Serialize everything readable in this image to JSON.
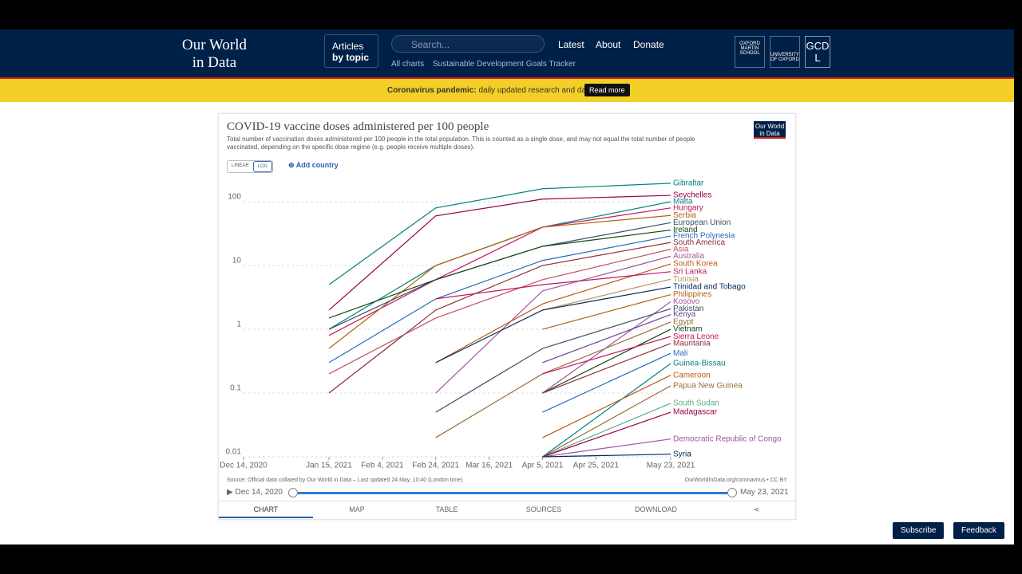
{
  "header": {
    "logo_line1": "Our World",
    "logo_line2": "in Data",
    "articles": "Articles",
    "by_topic": "by topic",
    "search": "Search...",
    "nav": [
      "Latest",
      "About",
      "Donate"
    ],
    "sub_nav": [
      "All charts",
      "Sustainable Development Goals Tracker"
    ],
    "partners": [
      "OXFORD MARTIN SCHOOL",
      "UNIVERSITY OF OXFORD",
      "GCDL"
    ]
  },
  "banner": {
    "bold": "Coronavirus pandemic:",
    "text": "daily updated research and data.",
    "button": "Read more"
  },
  "card": {
    "logo_line1": "Our World",
    "logo_line2": "in Data",
    "scale_options": [
      "LINEAR",
      "LOG"
    ],
    "add_country": "Add country",
    "source": "Source: Official data collated by Our World in Data – Last updated 24 May, 10:40 (London time)",
    "credit": "OurWorldInData.org/coronavirus • CC BY",
    "timeline_start": "Dec 14, 2020",
    "timeline_end": "May 23, 2021",
    "tabs": [
      "CHART",
      "MAP",
      "TABLE",
      "SOURCES",
      "DOWNLOAD"
    ]
  },
  "buttons": [
    "Subscribe",
    "Feedback"
  ],
  "chart_data": {
    "type": "line",
    "title": "COVID-19 vaccine doses administered per 100 people",
    "subtitle": "Total number of vaccination doses administered per 100 people in the total population. This is counted as a single dose, and may not equal the total number of people vaccinated, depending on the specific dose regime (e.g. people receive multiple doses).",
    "log_scale": true,
    "grid": true,
    "x": [
      "2020-12-14",
      "2021-01-15",
      "2021-02-24",
      "2021-04-05",
      "2021-05-23"
    ],
    "xlim": [
      "2020-12-14",
      "2021-05-23"
    ],
    "xticks": [
      {
        "value": "2020-12-14",
        "label": "Dec 14, 2020"
      },
      {
        "value": "2021-01-15",
        "label": "Jan 15, 2021"
      },
      {
        "value": "2021-02-04",
        "label": "Feb 4, 2021"
      },
      {
        "value": "2021-02-24",
        "label": "Feb 24, 2021"
      },
      {
        "value": "2021-03-16",
        "label": "Mar 16, 2021"
      },
      {
        "value": "2021-04-05",
        "label": "Apr 5, 2021"
      },
      {
        "value": "2021-04-25",
        "label": "Apr 25, 2021"
      },
      {
        "value": "2021-05-23",
        "label": "May 23, 2021"
      }
    ],
    "ylim": [
      0.01,
      200
    ],
    "yticks": [
      0.01,
      0.1,
      1,
      10,
      100
    ],
    "series": [
      {
        "name": "Gibraltar",
        "color": "#00847e",
        "values": [
          null,
          5,
          80,
          160,
          195
        ]
      },
      {
        "name": "Seychelles",
        "color": "#970046",
        "values": [
          null,
          2,
          60,
          110,
          126
        ]
      },
      {
        "name": "Malta",
        "color": "#00847e",
        "values": [
          null,
          1,
          10,
          40,
          100
        ]
      },
      {
        "name": "Hungary",
        "color": "#c2185b",
        "values": [
          null,
          0.8,
          6,
          40,
          80
        ]
      },
      {
        "name": "Serbia",
        "color": "#b16214",
        "values": [
          null,
          0.5,
          10,
          40,
          61
        ]
      },
      {
        "name": "European Union",
        "color": "#3c4e66",
        "values": [
          null,
          1,
          6,
          20,
          47
        ]
      },
      {
        "name": "Ireland",
        "color": "#18470f",
        "values": [
          null,
          1.5,
          6,
          20,
          36
        ]
      },
      {
        "name": "French Polynesia",
        "color": "#286bbb",
        "values": [
          null,
          0.3,
          3,
          12,
          29
        ]
      },
      {
        "name": "South America",
        "color": "#883039",
        "values": [
          null,
          0.1,
          2,
          10,
          23
        ]
      },
      {
        "name": "Asia",
        "color": "#c15065",
        "values": [
          null,
          0.2,
          1.5,
          6,
          18
        ]
      },
      {
        "name": "Australia",
        "color": "#a2559c",
        "values": [
          null,
          null,
          0.1,
          4,
          14
        ]
      },
      {
        "name": "South Korea",
        "color": "#be5915",
        "values": [
          null,
          null,
          0.3,
          2.5,
          10.6
        ]
      },
      {
        "name": "Sri Lanka",
        "color": "#c2185b",
        "values": [
          null,
          null,
          3,
          5,
          8
        ]
      },
      {
        "name": "Tunisia",
        "color": "#bc8e5a",
        "values": [
          null,
          null,
          null,
          2,
          6.1
        ]
      },
      {
        "name": "Trinidad and Tobago",
        "color": "#00295b",
        "values": [
          null,
          null,
          0.3,
          2,
          4.6
        ]
      },
      {
        "name": "Philippines",
        "color": "#b16214",
        "values": [
          null,
          null,
          null,
          1,
          3.5
        ]
      },
      {
        "name": "Kosovo",
        "color": "#a2559c",
        "values": [
          null,
          null,
          null,
          0.1,
          2.7
        ]
      },
      {
        "name": "Pakistan",
        "color": "#3c4e66",
        "values": [
          null,
          null,
          0.05,
          0.5,
          2.1
        ]
      },
      {
        "name": "Kenya",
        "color": "#6d3e91",
        "values": [
          null,
          null,
          null,
          0.3,
          1.7
        ]
      },
      {
        "name": "Egypt",
        "color": "#996d39",
        "values": [
          null,
          null,
          0.02,
          0.2,
          1.3
        ]
      },
      {
        "name": "Vietnam",
        "color": "#18470f",
        "values": [
          null,
          null,
          null,
          0.1,
          1.0
        ]
      },
      {
        "name": "Sierra Leone",
        "color": "#c2185b",
        "values": [
          null,
          null,
          null,
          0.2,
          0.77
        ]
      },
      {
        "name": "Mauritania",
        "color": "#883039",
        "values": [
          null,
          null,
          null,
          0.1,
          0.6
        ]
      },
      {
        "name": "Mali",
        "color": "#286bbb",
        "values": [
          null,
          null,
          null,
          0.05,
          0.42
        ]
      },
      {
        "name": "Guinea-Bissau",
        "color": "#00847e",
        "values": [
          null,
          null,
          null,
          0.01,
          0.29
        ]
      },
      {
        "name": "Cameroon",
        "color": "#be5915",
        "values": [
          null,
          null,
          null,
          0.02,
          0.19
        ]
      },
      {
        "name": "Papua New Guinea",
        "color": "#996d39",
        "values": [
          null,
          null,
          null,
          0.01,
          0.13
        ]
      },
      {
        "name": "South Sudan",
        "color": "#58ac8c",
        "values": [
          null,
          null,
          null,
          0.01,
          0.069
        ]
      },
      {
        "name": "Madagascar",
        "color": "#970046",
        "values": [
          null,
          null,
          null,
          0.01,
          0.05
        ]
      },
      {
        "name": "Democratic Republic of Congo",
        "color": "#a2559c",
        "values": [
          null,
          null,
          null,
          0.01,
          0.019
        ]
      },
      {
        "name": "Syria",
        "color": "#00295b",
        "values": [
          null,
          null,
          null,
          0.01,
          0.011
        ]
      }
    ]
  }
}
